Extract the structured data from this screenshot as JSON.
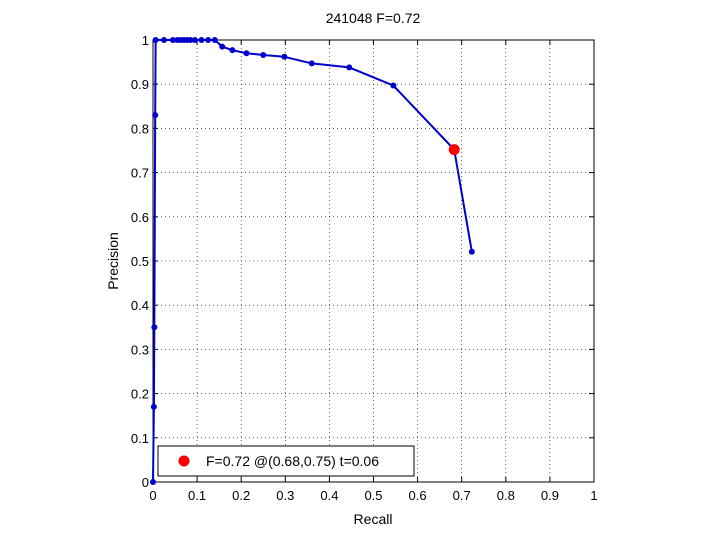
{
  "chart_data": {
    "type": "line",
    "title": "241048 F=0.72",
    "xlabel": "Recall",
    "ylabel": "Precision",
    "xlim": [
      0,
      1
    ],
    "ylim": [
      0,
      1
    ],
    "x_ticks": [
      "0",
      "0.1",
      "0.2",
      "0.3",
      "0.4",
      "0.5",
      "0.6",
      "0.7",
      "0.8",
      "0.9",
      "1"
    ],
    "y_ticks": [
      "0",
      "0.1",
      "0.2",
      "0.3",
      "0.4",
      "0.5",
      "0.6",
      "0.7",
      "0.8",
      "0.9",
      "1"
    ],
    "grid": true,
    "line_color": "#0000cc",
    "marker_color": "#0000cc",
    "highlight_color": "#ff0000",
    "series": [
      {
        "x": [
          0.0,
          0.002,
          0.003,
          0.005,
          0.006,
          0.025,
          0.045,
          0.055,
          0.063,
          0.07,
          0.077,
          0.085,
          0.095,
          0.11,
          0.125,
          0.14,
          0.157,
          0.18,
          0.212,
          0.25,
          0.298,
          0.36,
          0.445,
          0.545,
          0.683,
          0.723
        ],
        "y": [
          0.0,
          0.17,
          0.35,
          0.83,
          1.0,
          1.0,
          1.0,
          1.0,
          1.0,
          1.0,
          1.0,
          1.0,
          1.0,
          1.0,
          1.0,
          1.0,
          0.985,
          0.977,
          0.97,
          0.966,
          0.962,
          0.947,
          0.938,
          0.897,
          0.752,
          0.521
        ]
      }
    ],
    "highlight_point": {
      "x": 0.683,
      "y": 0.752
    },
    "legend": {
      "text": "F=0.72 @(0.68,0.75) t=0.06",
      "placement": "bottom-left"
    }
  }
}
